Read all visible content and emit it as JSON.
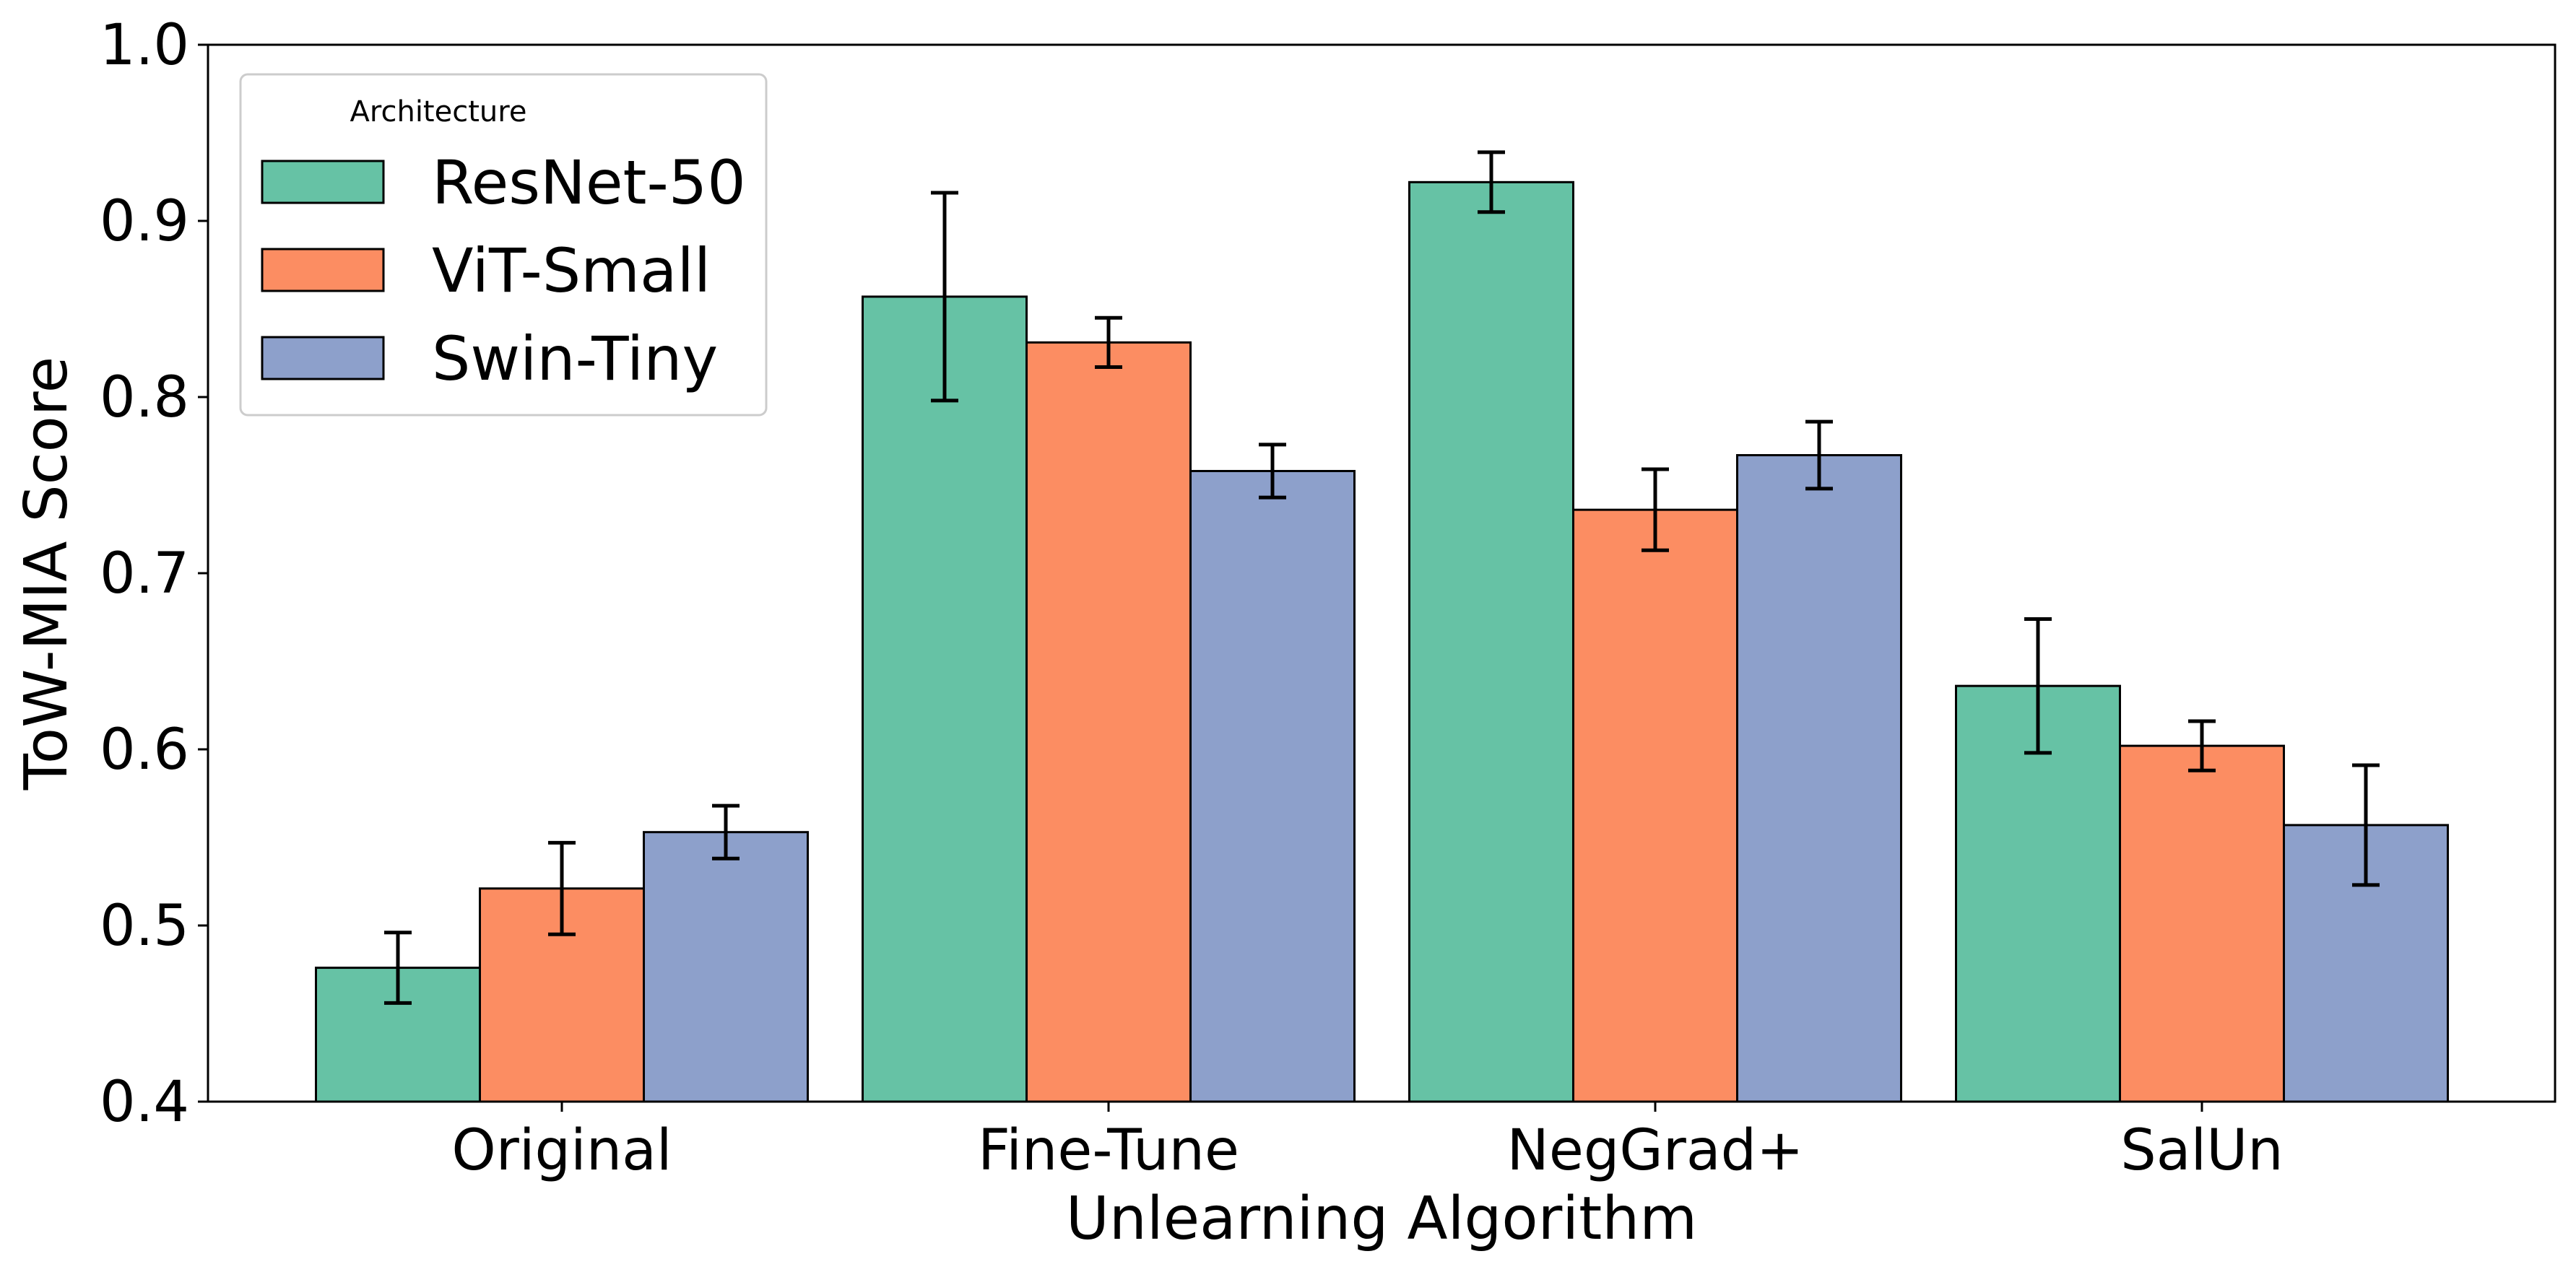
{
  "chart_data": {
    "type": "bar",
    "title": "",
    "xlabel": "Unlearning Algorithm",
    "ylabel": "ToW-MIA Score",
    "ylim": [
      0.4,
      1.0
    ],
    "yticks": [
      "0.4",
      "0.5",
      "0.6",
      "0.7",
      "0.8",
      "0.9",
      "1.0"
    ],
    "grid": false,
    "categories": [
      "Original",
      "Fine-Tune",
      "NegGrad+",
      "SalUn"
    ],
    "legend": {
      "title": "Architecture",
      "position": "top-left"
    },
    "series": [
      {
        "name": "ResNet-50",
        "color": "#66c2a5",
        "values": [
          0.476,
          0.857,
          0.922,
          0.636
        ],
        "errors": [
          0.02,
          0.059,
          0.017,
          0.038
        ]
      },
      {
        "name": "ViT-Small",
        "color": "#fc8d62",
        "values": [
          0.521,
          0.831,
          0.736,
          0.602
        ],
        "errors": [
          0.026,
          0.014,
          0.023,
          0.014
        ]
      },
      {
        "name": "Swin-Tiny",
        "color": "#8da0cb",
        "values": [
          0.553,
          0.758,
          0.767,
          0.557
        ],
        "errors": [
          0.015,
          0.015,
          0.019,
          0.034
        ]
      }
    ]
  }
}
